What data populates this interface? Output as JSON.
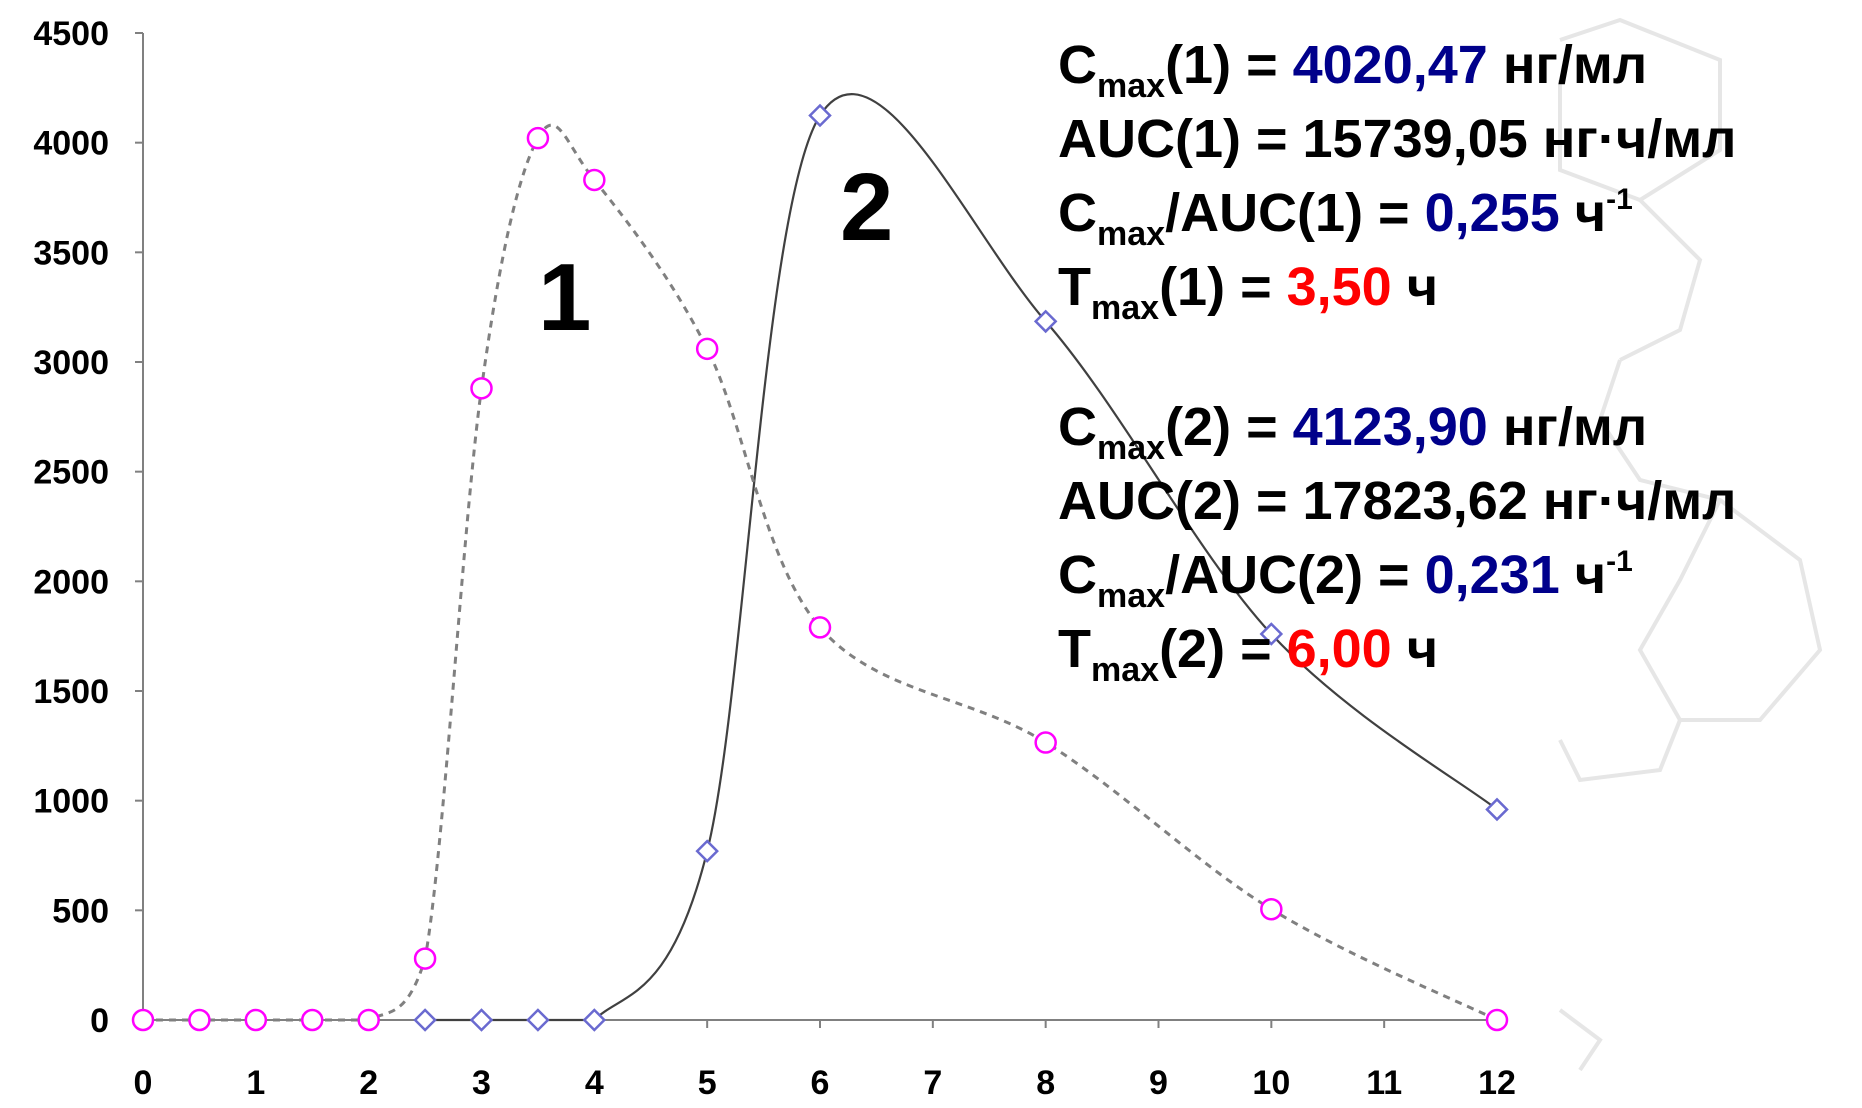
{
  "chart_data": {
    "type": "line",
    "xlabel": "",
    "ylabel": "",
    "xlim": [
      0,
      12
    ],
    "ylim": [
      0,
      4500
    ],
    "x_ticks": [
      0,
      1,
      2,
      3,
      4,
      5,
      6,
      7,
      8,
      9,
      10,
      11,
      12
    ],
    "y_ticks": [
      0,
      500,
      1000,
      1500,
      2000,
      2500,
      3000,
      3500,
      4000,
      4500
    ],
    "grid": false,
    "series": [
      {
        "name": "1",
        "style": "dashed",
        "line_color": "#808080",
        "marker": "circle",
        "marker_color": "#ff00ff",
        "x": [
          0,
          0.5,
          1,
          1.5,
          2,
          2.5,
          3,
          3.5,
          4,
          5,
          6,
          8,
          10,
          12
        ],
        "y": [
          0,
          0,
          0,
          0,
          0,
          280,
          2880,
          4020.47,
          3830,
          3060,
          1790,
          1265,
          505,
          0
        ]
      },
      {
        "name": "2",
        "style": "solid",
        "line_color": "#404040",
        "marker": "diamond",
        "marker_color": "#6a6ad0",
        "x": [
          2.5,
          3,
          3.5,
          4,
          5,
          6,
          8,
          10,
          12
        ],
        "y": [
          0,
          0,
          0,
          0,
          770,
          4123.9,
          3185,
          1760,
          960
        ]
      }
    ]
  },
  "stats": {
    "group1": {
      "cmax_label": "C",
      "cmax_sub": "max",
      "cmax_arg": "(1) = ",
      "cmax_value": "4020,47",
      "cmax_unit": " нг/мл",
      "auc_text": "AUC(1) = 15739,05 нг·ч/мл",
      "ratio_label": "C",
      "ratio_sub": "max",
      "ratio_arg": "/AUC(1) = ",
      "ratio_value": "0,255",
      "ratio_unit": " ч",
      "ratio_exp": "-1",
      "tmax_label": "T",
      "tmax_sub": "max",
      "tmax_arg": "(1) = ",
      "tmax_value": "3,50",
      "tmax_unit": " ч"
    },
    "group2": {
      "cmax_label": "C",
      "cmax_sub": "max",
      "cmax_arg": "(2) = ",
      "cmax_value": "4123,90",
      "cmax_unit": " нг/мл",
      "auc_text": "AUC(2) = 17823,62 нг·ч/мл",
      "ratio_label": "C",
      "ratio_sub": "max",
      "ratio_arg": "/AUC(2) = ",
      "ratio_value": "0,231",
      "ratio_unit": " ч",
      "ratio_exp": "-1",
      "tmax_label": "T",
      "tmax_sub": "max",
      "tmax_arg": "(2) = ",
      "tmax_value": "6,00",
      "tmax_unit": " ч"
    }
  }
}
